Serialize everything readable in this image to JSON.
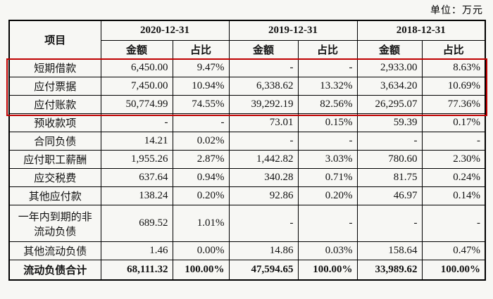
{
  "unit_label": "单位：万元",
  "colors": {
    "highlight_border": "#c00000",
    "table_border": "#000000",
    "page_background": "#f7f7f4",
    "text": "#111111"
  },
  "table": {
    "item_header": "项目",
    "col_groups": [
      {
        "date": "2020-12-31",
        "amount_label": "金额",
        "ratio_label": "占比"
      },
      {
        "date": "2019-12-31",
        "amount_label": "金额",
        "ratio_label": "占比"
      },
      {
        "date": "2018-12-31",
        "amount_label": "金额",
        "ratio_label": "占比"
      }
    ],
    "rows": [
      {
        "item": "短期借款",
        "cells": [
          "6,450.00",
          "9.47%",
          "-",
          "-",
          "2,933.00",
          "8.63%"
        ],
        "highlighted": true,
        "total": false
      },
      {
        "item": "应付票据",
        "cells": [
          "7,450.00",
          "10.94%",
          "6,338.62",
          "13.32%",
          "3,634.20",
          "10.69%"
        ],
        "highlighted": true,
        "total": false
      },
      {
        "item": "应付账款",
        "cells": [
          "50,774.99",
          "74.55%",
          "39,292.19",
          "82.56%",
          "26,295.07",
          "77.36%"
        ],
        "highlighted": true,
        "total": false
      },
      {
        "item": "预收款项",
        "cells": [
          "-",
          "-",
          "73.01",
          "0.15%",
          "59.39",
          "0.17%"
        ],
        "highlighted": false,
        "total": false
      },
      {
        "item": "合同负债",
        "cells": [
          "14.21",
          "0.02%",
          "-",
          "-",
          "-",
          "-"
        ],
        "highlighted": false,
        "total": false
      },
      {
        "item": "应付职工薪酬",
        "cells": [
          "1,955.26",
          "2.87%",
          "1,442.82",
          "3.03%",
          "780.60",
          "2.30%"
        ],
        "highlighted": false,
        "total": false
      },
      {
        "item": "应交税费",
        "cells": [
          "637.64",
          "0.94%",
          "340.28",
          "0.71%",
          "81.75",
          "0.24%"
        ],
        "highlighted": false,
        "total": false
      },
      {
        "item": "其他应付款",
        "cells": [
          "138.24",
          "0.20%",
          "92.86",
          "0.20%",
          "46.97",
          "0.14%"
        ],
        "highlighted": false,
        "total": false
      },
      {
        "item": "一年内到期的非流动负债",
        "cells": [
          "689.52",
          "1.01%",
          "-",
          "-",
          "-",
          "-"
        ],
        "highlighted": false,
        "total": false,
        "tall": true
      },
      {
        "item": "其他流动负债",
        "cells": [
          "1.46",
          "0.00%",
          "14.86",
          "0.03%",
          "158.64",
          "0.47%"
        ],
        "highlighted": false,
        "total": false
      },
      {
        "item": "流动负债合计",
        "cells": [
          "68,111.32",
          "100.00%",
          "47,594.65",
          "100.00%",
          "33,989.62",
          "100.00%"
        ],
        "highlighted": false,
        "total": true
      }
    ]
  }
}
